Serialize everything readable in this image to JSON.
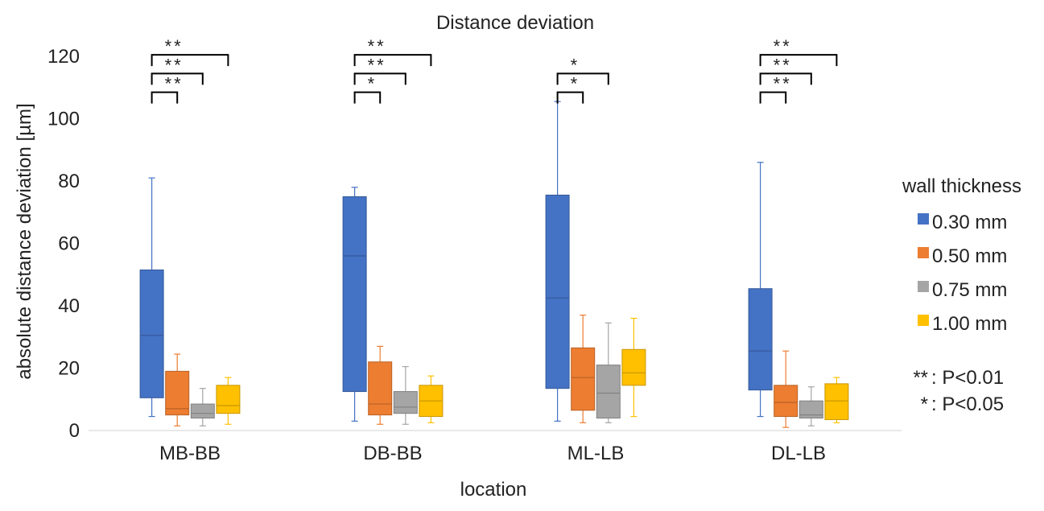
{
  "chart_data": {
    "type": "boxplot",
    "title": "Distance deviation",
    "xlabel": "location",
    "ylabel": "absolute distance deviation [µm]",
    "ylim": [
      0,
      120
    ],
    "yticks": [
      0,
      20,
      40,
      60,
      80,
      100,
      120
    ],
    "categories": [
      "MB-BB",
      "DB-BB",
      "ML-LB",
      "DL-LB"
    ],
    "legend": {
      "title": "wall thickness",
      "position": "right"
    },
    "series": [
      {
        "name": "0.30 mm",
        "color": "#4472C4",
        "boxes": [
          {
            "min": 4.5,
            "q1": 10.5,
            "median": 30.5,
            "q3": 51.5,
            "max": 81
          },
          {
            "min": 3,
            "q1": 12.5,
            "median": 56,
            "q3": 75,
            "max": 78
          },
          {
            "min": 3,
            "q1": 13.5,
            "median": 42.5,
            "q3": 75.5,
            "max": 105.5
          },
          {
            "min": 4.5,
            "q1": 13,
            "median": 25.5,
            "q3": 45.5,
            "max": 86
          }
        ]
      },
      {
        "name": "0.50 mm",
        "color": "#ED7D31",
        "boxes": [
          {
            "min": 1.5,
            "q1": 5,
            "median": 7,
            "q3": 19,
            "max": 24.5
          },
          {
            "min": 2,
            "q1": 5,
            "median": 8.5,
            "q3": 22,
            "max": 27
          },
          {
            "min": 2.5,
            "q1": 6.5,
            "median": 17,
            "q3": 26.5,
            "max": 37
          },
          {
            "min": 1,
            "q1": 4.5,
            "median": 9,
            "q3": 14.5,
            "max": 25.5
          }
        ]
      },
      {
        "name": "0.75 mm",
        "color": "#A5A5A5",
        "boxes": [
          {
            "min": 1.5,
            "q1": 4,
            "median": 5.5,
            "q3": 8.5,
            "max": 13.5
          },
          {
            "min": 2,
            "q1": 5.5,
            "median": 7.5,
            "q3": 12.5,
            "max": 20.5
          },
          {
            "min": 2.5,
            "q1": 4,
            "median": 12,
            "q3": 21,
            "max": 34.5
          },
          {
            "min": 1.5,
            "q1": 4,
            "median": 5,
            "q3": 9.5,
            "max": 14
          }
        ]
      },
      {
        "name": "1.00 mm",
        "color": "#FFC000",
        "boxes": [
          {
            "min": 2,
            "q1": 5.5,
            "median": 8,
            "q3": 14.5,
            "max": 17
          },
          {
            "min": 2.5,
            "q1": 4.5,
            "median": 9.5,
            "q3": 14.5,
            "max": 17.5
          },
          {
            "min": 4.5,
            "q1": 14.5,
            "median": 18.5,
            "q3": 26,
            "max": 36
          },
          {
            "min": 2.5,
            "q1": 3.5,
            "median": 9.5,
            "q3": 15,
            "max": 17
          }
        ]
      }
    ],
    "significance": [
      {
        "category": 0,
        "brackets": [
          {
            "from": 0,
            "to": 1,
            "label": "**"
          },
          {
            "from": 0,
            "to": 2,
            "label": "**"
          },
          {
            "from": 0,
            "to": 3,
            "label": "**"
          }
        ]
      },
      {
        "category": 1,
        "brackets": [
          {
            "from": 0,
            "to": 1,
            "label": "*"
          },
          {
            "from": 0,
            "to": 2,
            "label": "**"
          },
          {
            "from": 0,
            "to": 3,
            "label": "**"
          }
        ]
      },
      {
        "category": 2,
        "brackets": [
          {
            "from": 0,
            "to": 1,
            "label": "*"
          },
          {
            "from": 0,
            "to": 2,
            "label": "*"
          }
        ]
      },
      {
        "category": 3,
        "brackets": [
          {
            "from": 0,
            "to": 1,
            "label": "**"
          },
          {
            "from": 0,
            "to": 2,
            "label": "**"
          },
          {
            "from": 0,
            "to": 3,
            "label": "**"
          }
        ]
      }
    ],
    "significance_key": [
      {
        "symbol": "**",
        "text": ": P<0.01"
      },
      {
        "symbol": "*",
        "text": ": P<0.05"
      }
    ]
  }
}
